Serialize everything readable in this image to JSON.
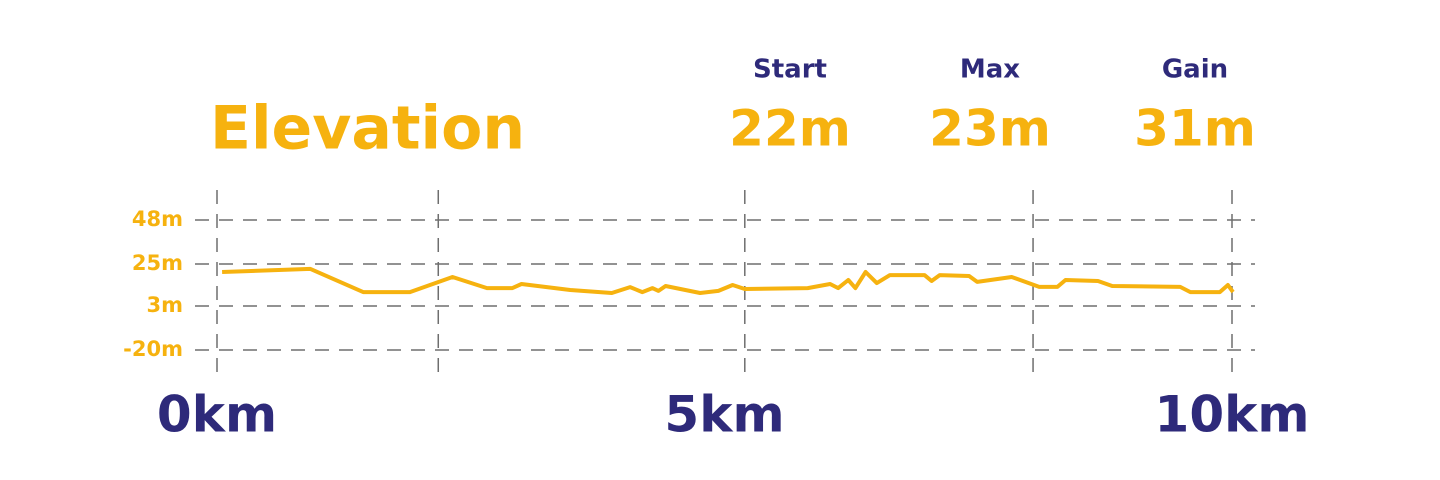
{
  "chart_data": {
    "type": "line",
    "title": "Elevation",
    "stats": [
      {
        "label": "Start",
        "value": "22m"
      },
      {
        "label": "Max",
        "value": "23m"
      },
      {
        "label": "Gain",
        "value": "31m"
      }
    ],
    "x": [
      0.05,
      0.92,
      1.44,
      1.9,
      2.32,
      2.66,
      2.91,
      3.0,
      3.48,
      3.89,
      4.07,
      4.19,
      4.29,
      4.35,
      4.42,
      4.76,
      4.94,
      5.08,
      5.2,
      5.82,
      6.04,
      6.12,
      6.22,
      6.29,
      6.39,
      6.5,
      6.63,
      6.97,
      7.04,
      7.12,
      7.41,
      7.49,
      7.83,
      8.1,
      8.28,
      8.36,
      8.68,
      8.82,
      9.49,
      9.59,
      9.88,
      9.96,
      10.01
    ],
    "series": [
      {
        "name": "Elevation",
        "color": "#f6b20f",
        "values": [
          20.8,
          22.4,
          10.3,
          10.3,
          18.2,
          12.4,
          12.4,
          14.5,
          11.4,
          9.8,
          12.9,
          10.3,
          12.4,
          10.9,
          13.5,
          9.8,
          10.9,
          14,
          11.9,
          12.4,
          14.5,
          12.4,
          16.6,
          12.4,
          20.8,
          15,
          19.2,
          19.2,
          16.1,
          19.2,
          18.7,
          15.6,
          18.2,
          13,
          13,
          16.6,
          16.1,
          13.5,
          13,
          10.3,
          10.3,
          14,
          10.3
        ]
      }
    ],
    "xlim": [
      0,
      10
    ],
    "xticks": [
      {
        "value": 0,
        "label": "0km"
      },
      {
        "value": 5,
        "label": "5km"
      },
      {
        "value": 10,
        "label": "10km"
      }
    ],
    "xgrid": [
      0,
      2.18,
      5.2,
      8.04,
      10
    ],
    "ylim": [
      -20,
      48
    ],
    "yticks": [
      {
        "value": -20,
        "label": "-20m"
      },
      {
        "value": 3,
        "label": "3m"
      },
      {
        "value": 25,
        "label": "25m"
      },
      {
        "value": 48,
        "label": "48m"
      }
    ],
    "grid": true,
    "label_color": "#2e2a7a"
  }
}
